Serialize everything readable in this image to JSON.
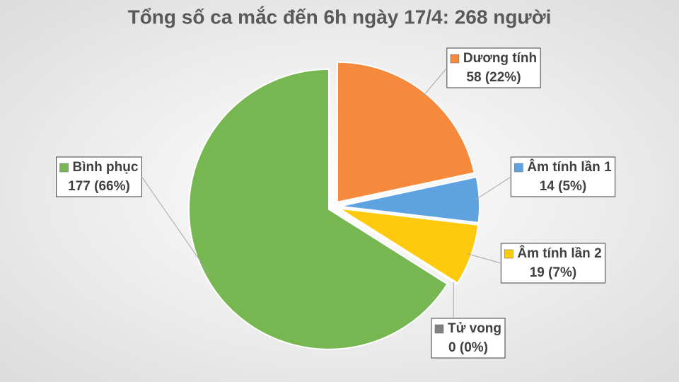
{
  "chart_data": {
    "type": "pie",
    "title": "Tổng số ca mắc đến 6h ngày 17/4: 268 người",
    "categories": [
      "Dương tính",
      "Âm tính lần 1",
      "Âm tính lần 2",
      "Tử vong",
      "Bình phục"
    ],
    "values": [
      58,
      14,
      19,
      0,
      177
    ],
    "value_labels": [
      "58 (22%)",
      "14 (5%)",
      "19 (7%)",
      "0 (0%)",
      "177 (66%)"
    ],
    "colors": [
      "#f58a3c",
      "#5fa2e0",
      "#ffc90e",
      "#808080",
      "#77b752"
    ]
  }
}
